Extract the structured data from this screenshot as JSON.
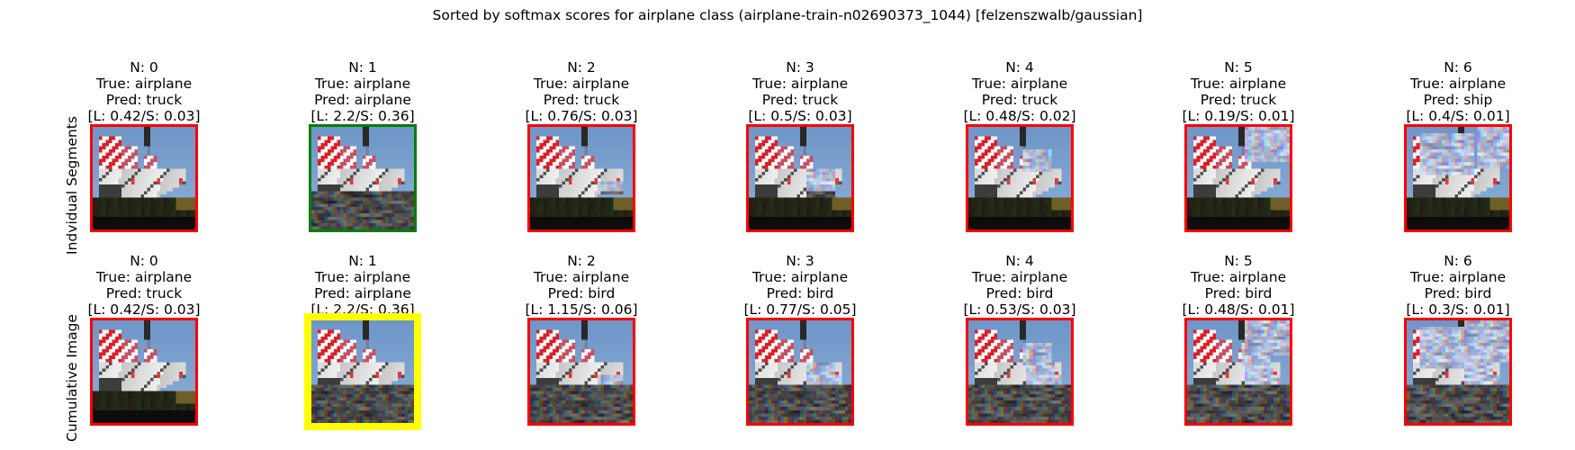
{
  "title": "Sorted by softmax scores for airplane class (airplane-train-n02690373_1044) [felzenszwalb/gaussian]",
  "colors": {
    "incorrect": "#ff0000",
    "correct": "#008000",
    "best": "#ffff00"
  },
  "chart_data": {
    "type": "image-grid",
    "rows": [
      {
        "label": "Indvidual Segments",
        "panels": [
          {
            "n": "N: 0",
            "true": "True: airplane",
            "pred": "Pred: truck",
            "score": "[L: 0.42/S: 0.03]",
            "status": "incorrect",
            "noise": 0
          },
          {
            "n": "N: 1",
            "true": "True: airplane",
            "pred": "Pred: airplane",
            "score": "[L: 2.2/S: 0.36]",
            "status": "correct",
            "noise": 1
          },
          {
            "n": "N: 2",
            "true": "True: airplane",
            "pred": "Pred: truck",
            "score": "[L: 0.76/S: 0.03]",
            "status": "incorrect",
            "noise": 2
          },
          {
            "n": "N: 3",
            "true": "True: airplane",
            "pred": "Pred: truck",
            "score": "[L: 0.5/S: 0.03]",
            "status": "incorrect",
            "noise": 3
          },
          {
            "n": "N: 4",
            "true": "True: airplane",
            "pred": "Pred: truck",
            "score": "[L: 0.48/S: 0.02]",
            "status": "incorrect",
            "noise": 4
          },
          {
            "n": "N: 5",
            "true": "True: airplane",
            "pred": "Pred: truck",
            "score": "[L: 0.19/S: 0.01]",
            "status": "incorrect",
            "noise": 5
          },
          {
            "n": "N: 6",
            "true": "True: airplane",
            "pred": "Pred: ship",
            "score": "[L: 0.4/S: 0.01]",
            "status": "incorrect",
            "noise": 6
          }
        ]
      },
      {
        "label": "Cumulative Image",
        "panels": [
          {
            "n": "N: 0",
            "true": "True: airplane",
            "pred": "Pred: truck",
            "score": "[L: 0.42/S: 0.03]",
            "status": "incorrect",
            "noise": 0
          },
          {
            "n": "N: 1",
            "true": "True: airplane",
            "pred": "Pred: airplane",
            "score": "[L: 2.2/S: 0.36]",
            "status": "best",
            "noise": 1
          },
          {
            "n": "N: 2",
            "true": "True: airplane",
            "pred": "Pred: bird",
            "score": "[L: 1.15/S: 0.06]",
            "status": "incorrect",
            "noise": 12
          },
          {
            "n": "N: 3",
            "true": "True: airplane",
            "pred": "Pred: bird",
            "score": "[L: 0.77/S: 0.05]",
            "status": "incorrect",
            "noise": 123
          },
          {
            "n": "N: 4",
            "true": "True: airplane",
            "pred": "Pred: bird",
            "score": "[L: 0.53/S: 0.03]",
            "status": "incorrect",
            "noise": 1234
          },
          {
            "n": "N: 5",
            "true": "True: airplane",
            "pred": "Pred: bird",
            "score": "[L: 0.48/S: 0.01]",
            "status": "incorrect",
            "noise": 12345
          },
          {
            "n": "N: 6",
            "true": "True: airplane",
            "pred": "Pred: bird",
            "score": "[L: 0.3/S: 0.01]",
            "status": "incorrect",
            "noise": 123456
          }
        ]
      }
    ]
  }
}
